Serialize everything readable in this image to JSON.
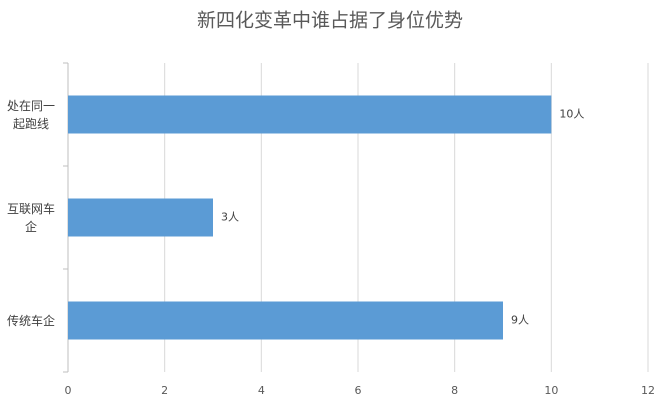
{
  "chart_data": {
    "type": "hbar",
    "title": "新四化变革中谁占据了身位优势",
    "categories": [
      "处在同一起跑线",
      "互联网车企",
      "传统车企"
    ],
    "values": [
      10,
      3,
      9
    ],
    "value_labels": [
      "10人",
      "3人",
      "9人"
    ],
    "color": "#5b9bd5",
    "xlim": [
      0,
      12
    ],
    "xticks": [
      0,
      2,
      4,
      6,
      8,
      10,
      12
    ],
    "grid": true
  }
}
